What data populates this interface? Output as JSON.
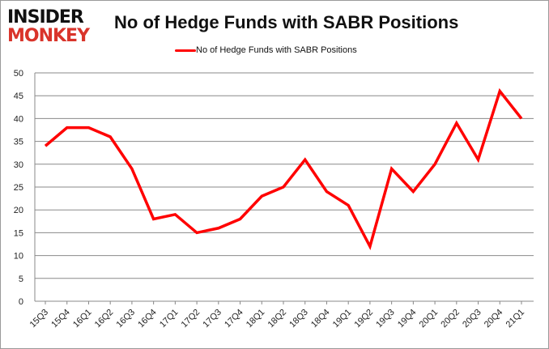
{
  "logo": {
    "line1": "INSIDER",
    "line2": "MONKEY"
  },
  "chart_data": {
    "type": "line",
    "title": "No of Hedge Funds with SABR Positions",
    "xlabel": "",
    "ylabel": "",
    "categories": [
      "15Q3",
      "15Q4",
      "16Q1",
      "16Q2",
      "16Q3",
      "16Q4",
      "17Q1",
      "17Q2",
      "17Q3",
      "17Q4",
      "18Q1",
      "18Q2",
      "18Q3",
      "18Q4",
      "19Q1",
      "19Q2",
      "19Q3",
      "19Q4",
      "20Q1",
      "20Q2",
      "20Q3",
      "20Q4",
      "21Q1"
    ],
    "series": [
      {
        "name": "No of Hedge Funds with SABR Positions",
        "color": "#ff0000",
        "values": [
          34,
          38,
          38,
          36,
          29,
          18,
          19,
          15,
          16,
          18,
          23,
          25,
          31,
          24,
          21,
          12,
          29,
          24,
          30,
          39,
          31,
          46,
          40
        ]
      }
    ],
    "ylim": [
      0,
      50
    ],
    "yticks": [
      0,
      5,
      10,
      15,
      20,
      25,
      30,
      35,
      40,
      45,
      50
    ],
    "grid": true,
    "legend": "top"
  }
}
